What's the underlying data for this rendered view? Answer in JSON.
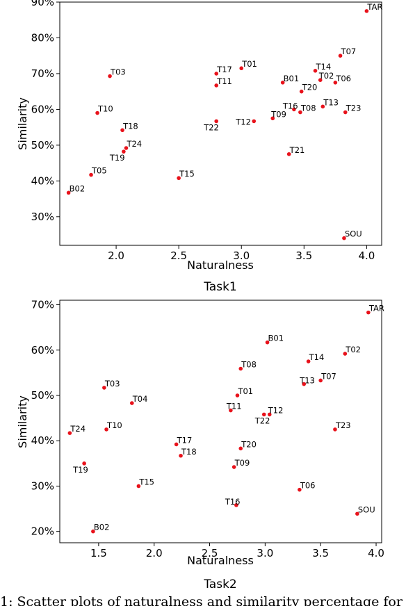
{
  "caption": "1: Scatter plots of naturalness and similarity percentage for",
  "chart_data": [
    {
      "type": "scatter",
      "title": "Task1",
      "xlabel": "Naturalness",
      "ylabel": "Similarity",
      "xlim": [
        1.55,
        4.12
      ],
      "ylim": [
        22,
        90
      ],
      "xticks": [
        2.0,
        2.5,
        3.0,
        3.5,
        4.0
      ],
      "xtick_labels": [
        "2.0",
        "2.5",
        "3.0",
        "3.5",
        "4.0"
      ],
      "yticks": [
        30,
        40,
        50,
        60,
        70,
        80,
        90
      ],
      "ytick_labels": [
        "30%",
        "40%",
        "50%",
        "60%",
        "70%",
        "80%",
        "90%"
      ],
      "marker_color": "#e8121b",
      "grid": false,
      "points": [
        {
          "label": "TAR",
          "x": 4.0,
          "y": 87.5
        },
        {
          "label": "T07",
          "x": 3.79,
          "y": 75
        },
        {
          "label": "T01",
          "x": 3.0,
          "y": 71.5
        },
        {
          "label": "T17",
          "x": 2.8,
          "y": 70
        },
        {
          "label": "T03",
          "x": 1.95,
          "y": 69.3
        },
        {
          "label": "T14",
          "x": 3.59,
          "y": 70.8
        },
        {
          "label": "B01",
          "x": 3.33,
          "y": 67.5
        },
        {
          "label": "T02",
          "x": 3.63,
          "y": 68.2
        },
        {
          "label": "T06",
          "x": 3.75,
          "y": 67.5
        },
        {
          "label": "T11",
          "x": 2.8,
          "y": 66.7
        },
        {
          "label": "T20",
          "x": 3.48,
          "y": 65
        },
        {
          "label": "T13",
          "x": 3.65,
          "y": 60.8
        },
        {
          "label": "T16",
          "x": 3.42,
          "y": 60
        },
        {
          "label": "T08",
          "x": 3.47,
          "y": 59.2
        },
        {
          "label": "T23",
          "x": 3.83,
          "y": 59.2
        },
        {
          "label": "T10",
          "x": 1.85,
          "y": 59
        },
        {
          "label": "T09",
          "x": 3.25,
          "y": 57.5
        },
        {
          "label": "T12",
          "x": 3.1,
          "y": 56.7
        },
        {
          "label": "T22",
          "x": 2.8,
          "y": 56.7
        },
        {
          "label": "T18",
          "x": 2.05,
          "y": 54.2
        },
        {
          "label": "T24",
          "x": 2.08,
          "y": 49.2
        },
        {
          "label": "T19",
          "x": 2.06,
          "y": 48.2
        },
        {
          "label": "T21",
          "x": 3.38,
          "y": 47.5
        },
        {
          "label": "T05",
          "x": 1.8,
          "y": 41.7
        },
        {
          "label": "T15",
          "x": 2.5,
          "y": 40.8
        },
        {
          "label": "B02",
          "x": 1.62,
          "y": 36.7
        },
        {
          "label": "SOU",
          "x": 3.82,
          "y": 24
        }
      ]
    },
    {
      "type": "scatter",
      "title": "Task2",
      "xlabel": "Naturalness",
      "ylabel": "Similarity",
      "xlim": [
        1.15,
        4.05
      ],
      "ylim": [
        17.5,
        71
      ],
      "xticks": [
        1.5,
        2.0,
        2.5,
        3.0,
        3.5,
        4.0
      ],
      "xtick_labels": [
        "1.5",
        "2.0",
        "2.5",
        "3.0",
        "3.5",
        "4.0"
      ],
      "yticks": [
        20,
        30,
        40,
        50,
        60,
        70
      ],
      "ytick_labels": [
        "20%",
        "30%",
        "40%",
        "50%",
        "60%",
        "70%"
      ],
      "marker_color": "#e8121b",
      "grid": false,
      "points": [
        {
          "label": "TAR",
          "x": 3.93,
          "y": 68.3
        },
        {
          "label": "B01",
          "x": 3.02,
          "y": 61.7
        },
        {
          "label": "T02",
          "x": 3.72,
          "y": 59.2
        },
        {
          "label": "T14",
          "x": 3.39,
          "y": 57.5
        },
        {
          "label": "T08",
          "x": 2.78,
          "y": 55.9
        },
        {
          "label": "T07",
          "x": 3.5,
          "y": 53.3
        },
        {
          "label": "T13",
          "x": 3.35,
          "y": 52.5
        },
        {
          "label": "T03",
          "x": 1.55,
          "y": 51.7
        },
        {
          "label": "T01",
          "x": 2.75,
          "y": 50
        },
        {
          "label": "T04",
          "x": 1.8,
          "y": 48.3
        },
        {
          "label": "T11",
          "x": 2.69,
          "y": 46.7
        },
        {
          "label": "T12",
          "x": 3.04,
          "y": 45.8
        },
        {
          "label": "T22",
          "x": 2.99,
          "y": 45.8
        },
        {
          "label": "T10",
          "x": 1.57,
          "y": 42.5
        },
        {
          "label": "T23",
          "x": 3.63,
          "y": 42.5
        },
        {
          "label": "T24",
          "x": 1.24,
          "y": 41.7
        },
        {
          "label": "T17",
          "x": 2.2,
          "y": 39.2
        },
        {
          "label": "T20",
          "x": 2.78,
          "y": 38.3
        },
        {
          "label": "T18",
          "x": 2.24,
          "y": 36.7
        },
        {
          "label": "T19",
          "x": 1.37,
          "y": 35
        },
        {
          "label": "T09",
          "x": 2.72,
          "y": 34.2
        },
        {
          "label": "T15",
          "x": 1.86,
          "y": 30
        },
        {
          "label": "T06",
          "x": 3.31,
          "y": 29.2
        },
        {
          "label": "T16",
          "x": 2.74,
          "y": 25.8
        },
        {
          "label": "SOU",
          "x": 3.83,
          "y": 23.9
        },
        {
          "label": "B02",
          "x": 1.45,
          "y": 20
        }
      ]
    }
  ]
}
